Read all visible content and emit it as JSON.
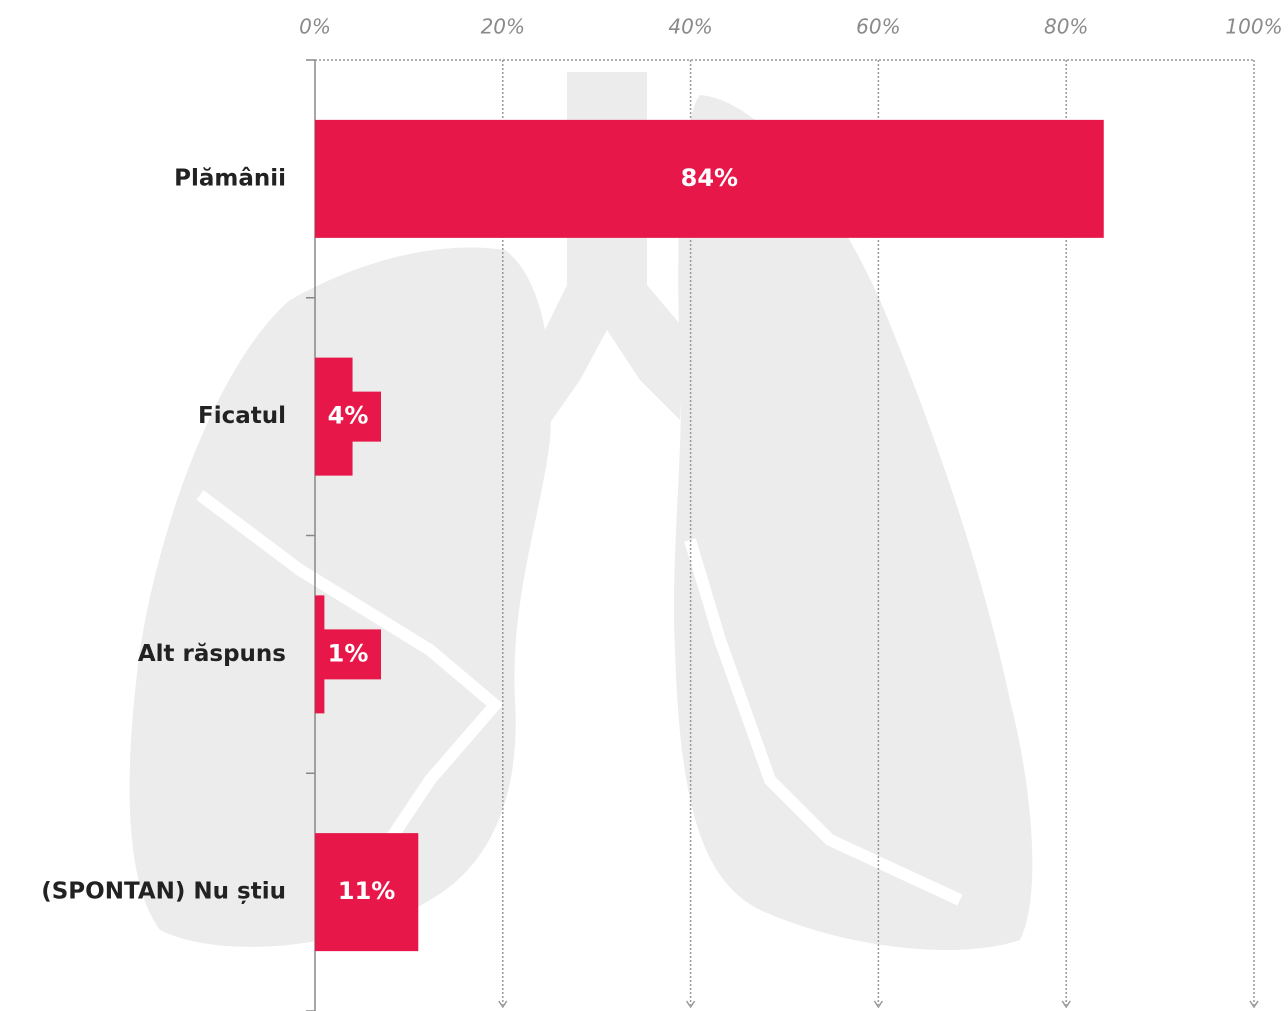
{
  "chart_data": {
    "type": "bar",
    "orientation": "horizontal",
    "categories": [
      "Plămânii",
      "Ficatul",
      "Alt răspuns",
      "(SPONTAN) Nu știu"
    ],
    "values": [
      84,
      4,
      1,
      11
    ],
    "value_labels": [
      "84%",
      "4%",
      "1%",
      "11%"
    ],
    "color": "#e8174a",
    "xlim": [
      0,
      100
    ],
    "xticks": [
      {
        "value": 0,
        "label": "0%"
      },
      {
        "value": 20,
        "label": "20%"
      },
      {
        "value": 40,
        "label": "40%"
      },
      {
        "value": 60,
        "label": "60%"
      },
      {
        "value": 80,
        "label": "80%"
      },
      {
        "value": 100,
        "label": "100%"
      }
    ],
    "grid": true
  }
}
